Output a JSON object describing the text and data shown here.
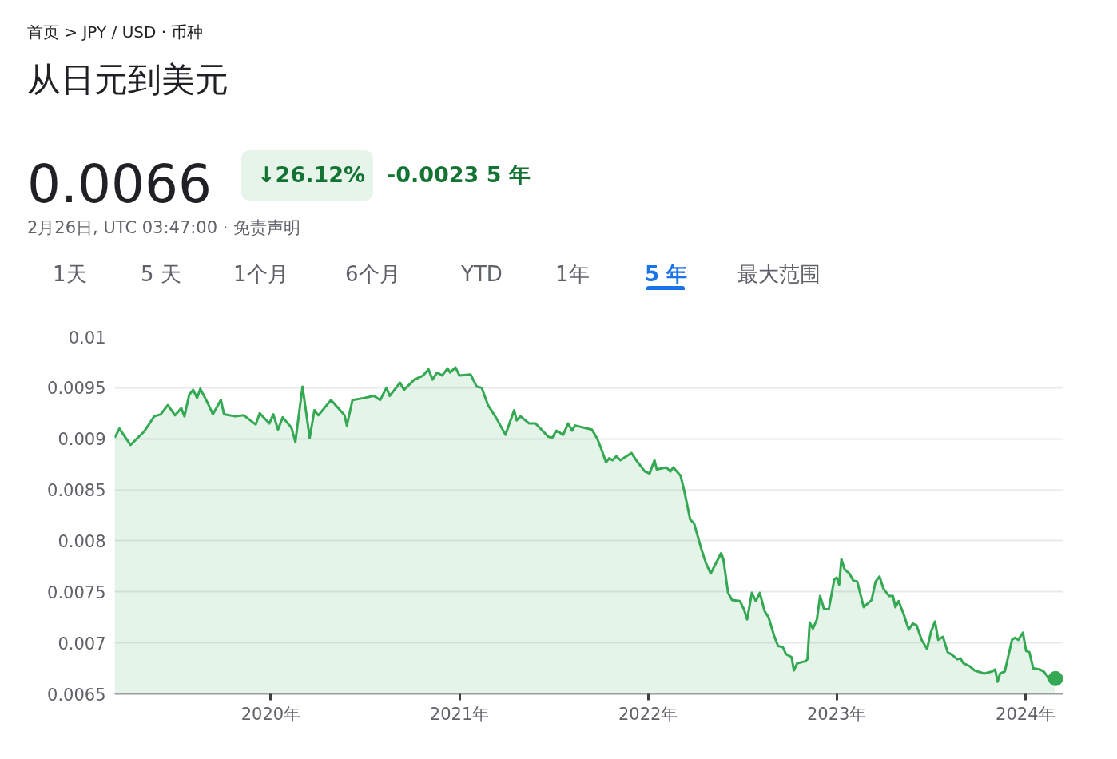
{
  "chart_data": {
    "type": "area",
    "title": "从日元到美元",
    "subtitle": "首页 > JPY / USD · 币种",
    "annotations": [
      "0.0066",
      "↓26.12%",
      "-0.0023 5 年",
      "2月26日, UTC 03:47:00 · 免责声明",
      "1天",
      "5 天",
      "1个月",
      "6个月",
      "YTD",
      "1年",
      "5 年",
      "最大范围"
    ],
    "xlim": [
      2019.172,
      2024.2
    ],
    "ylim": [
      0.0065,
      0.01
    ],
    "xticks": [
      {
        "value": 2020,
        "label": "2020年"
      },
      {
        "value": 2021,
        "label": "2021年"
      },
      {
        "value": 2022,
        "label": "2022年"
      },
      {
        "value": 2023,
        "label": "2023年"
      },
      {
        "value": 2024,
        "label": "2024年"
      }
    ],
    "yticks": [
      0.0065,
      0.007,
      0.0075,
      0.008,
      0.0085,
      0.009,
      0.0095,
      0.01
    ],
    "grid": "y",
    "series": [
      {
        "color": "#34a853",
        "x": [
          2019.172,
          2019.197,
          2019.256,
          2019.328,
          2019.382,
          2019.416,
          2019.454,
          2019.492,
          2019.525,
          2019.542,
          2019.567,
          2019.588,
          2019.609,
          2019.626,
          2019.668,
          2019.693,
          2019.735,
          2019.752,
          2019.811,
          2019.857,
          2019.92,
          2019.941,
          2019.992,
          2020.013,
          2020.038,
          2020.063,
          2020.109,
          2020.13,
          2020.168,
          2020.206,
          2020.231,
          2020.252,
          2020.319,
          2020.391,
          2020.403,
          2020.433,
          2020.496,
          2020.546,
          2020.58,
          2020.613,
          2020.63,
          2020.685,
          2020.706,
          2020.761,
          2020.807,
          2020.836,
          2020.857,
          2020.882,
          2020.908,
          2020.937,
          2020.95,
          2020.979,
          2021.0,
          2021.059,
          2021.092,
          2021.118,
          2021.151,
          2021.193,
          2021.244,
          2021.29,
          2021.303,
          2021.324,
          2021.37,
          2021.403,
          2021.471,
          2021.492,
          2021.513,
          2021.55,
          2021.576,
          2021.597,
          2021.613,
          2021.702,
          2021.731,
          2021.752,
          2021.777,
          2021.794,
          2021.811,
          2021.832,
          2021.853,
          2021.912,
          2021.937,
          2021.983,
          2022.008,
          2022.034,
          2022.046,
          2022.097,
          2022.118,
          2022.134,
          2022.147,
          2022.172,
          2022.193,
          2022.223,
          2022.244,
          2022.282,
          2022.307,
          2022.332,
          2022.387,
          2022.399,
          2022.424,
          2022.445,
          2022.487,
          2022.508,
          2022.525,
          2022.55,
          2022.571,
          2022.592,
          2022.618,
          2022.639,
          2022.668,
          2022.689,
          2022.714,
          2022.731,
          2022.761,
          2022.773,
          2022.79,
          2022.832,
          2022.845,
          2022.857,
          2022.874,
          2022.895,
          2022.912,
          2022.933,
          2022.958,
          2022.987,
          2023.0,
          2023.013,
          2023.025,
          2023.042,
          2023.067,
          2023.088,
          2023.109,
          2023.143,
          2023.185,
          2023.206,
          2023.227,
          2023.248,
          2023.277,
          2023.298,
          2023.311,
          2023.328,
          2023.357,
          2023.382,
          2023.403,
          2023.424,
          2023.45,
          2023.479,
          2023.5,
          2023.521,
          2023.538,
          2023.563,
          2023.588,
          2023.613,
          2023.639,
          2023.655,
          2023.672,
          2023.706,
          2023.731,
          2023.782,
          2023.824,
          2023.84,
          2023.853,
          2023.866,
          2023.891,
          2023.912,
          2023.929,
          2023.945,
          2023.962,
          2023.987,
          2024.004,
          2024.021,
          2024.042,
          2024.076,
          2024.097,
          2024.118,
          2024.16
        ],
        "values": [
          0.00901,
          0.0091,
          0.00894,
          0.00907,
          0.00922,
          0.00924,
          0.00933,
          0.00923,
          0.0093,
          0.00922,
          0.00943,
          0.00948,
          0.0094,
          0.00949,
          0.00934,
          0.00924,
          0.00938,
          0.00924,
          0.00922,
          0.00923,
          0.00914,
          0.00925,
          0.00915,
          0.00924,
          0.00909,
          0.00921,
          0.00911,
          0.00897,
          0.00951,
          0.00901,
          0.00928,
          0.00923,
          0.00938,
          0.00923,
          0.00913,
          0.00938,
          0.0094,
          0.00942,
          0.00938,
          0.0095,
          0.00942,
          0.00955,
          0.00948,
          0.00958,
          0.00962,
          0.00968,
          0.00958,
          0.00965,
          0.00962,
          0.00969,
          0.00965,
          0.0097,
          0.00962,
          0.00963,
          0.00951,
          0.0095,
          0.00933,
          0.00921,
          0.00904,
          0.00928,
          0.00918,
          0.00922,
          0.00915,
          0.00915,
          0.00902,
          0.00901,
          0.00908,
          0.00904,
          0.00915,
          0.00908,
          0.00913,
          0.00909,
          0.009,
          0.0089,
          0.00877,
          0.00881,
          0.00879,
          0.00883,
          0.00879,
          0.00886,
          0.00879,
          0.00868,
          0.00866,
          0.00879,
          0.0087,
          0.00872,
          0.00868,
          0.00872,
          0.00869,
          0.00864,
          0.00848,
          0.00821,
          0.00817,
          0.00792,
          0.00778,
          0.00768,
          0.00788,
          0.00782,
          0.00749,
          0.00742,
          0.00741,
          0.00733,
          0.00723,
          0.00749,
          0.00741,
          0.00749,
          0.00731,
          0.00725,
          0.00707,
          0.00697,
          0.00696,
          0.00689,
          0.00686,
          0.00673,
          0.0068,
          0.00682,
          0.00684,
          0.0072,
          0.00714,
          0.00723,
          0.00746,
          0.00733,
          0.00733,
          0.00762,
          0.00764,
          0.00757,
          0.00782,
          0.00772,
          0.00768,
          0.00761,
          0.0076,
          0.00735,
          0.00742,
          0.0076,
          0.00765,
          0.00753,
          0.00746,
          0.00746,
          0.00735,
          0.00741,
          0.00727,
          0.00713,
          0.00719,
          0.00717,
          0.00703,
          0.00694,
          0.00711,
          0.00721,
          0.00703,
          0.00706,
          0.00691,
          0.00688,
          0.00684,
          0.00685,
          0.0068,
          0.00677,
          0.00673,
          0.0067,
          0.00672,
          0.00674,
          0.00662,
          0.0067,
          0.00672,
          0.00689,
          0.00703,
          0.00705,
          0.00703,
          0.0071,
          0.00692,
          0.00691,
          0.00675,
          0.00674,
          0.00672,
          0.00667,
          0.00665
        ]
      },
      {
        "type": "scatter",
        "color": "#34a853",
        "marker": "circle",
        "x": [
          2024.16
        ],
        "values": [
          0.00665
        ]
      }
    ]
  }
}
